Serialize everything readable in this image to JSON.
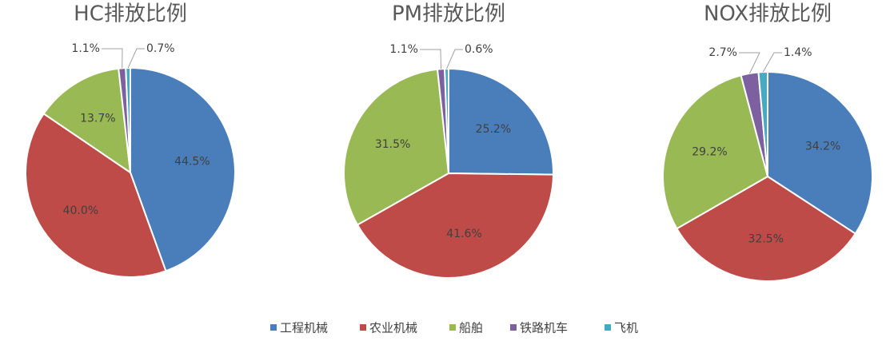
{
  "chart_data": [
    {
      "type": "pie",
      "title": "HC排放比例",
      "categories": [
        "工程机械",
        "农业机械",
        "船舶",
        "铁路机车",
        "飞机"
      ],
      "colors": [
        "#4a7ebb",
        "#be4b48",
        "#98b954",
        "#7d60a0",
        "#46aac5"
      ],
      "values": [
        44.5,
        40.0,
        13.7,
        1.1,
        0.7
      ],
      "value_labels": [
        "44.5%",
        "40.0%",
        "13.7%",
        "1.1%",
        "0.7%"
      ]
    },
    {
      "type": "pie",
      "title": "PM排放比例",
      "values": [
        25.2,
        41.6,
        31.5,
        1.1,
        0.6
      ],
      "value_labels": [
        "25.2%",
        "41.6%",
        "31.5%",
        "1.1%",
        "0.6%"
      ]
    },
    {
      "type": "pie",
      "title": "NOX排放比例",
      "values": [
        34.2,
        32.5,
        29.2,
        2.7,
        1.4
      ],
      "value_labels": [
        "34.2%",
        "32.5%",
        "29.2%",
        "2.7%",
        "1.4%"
      ]
    }
  ]
}
